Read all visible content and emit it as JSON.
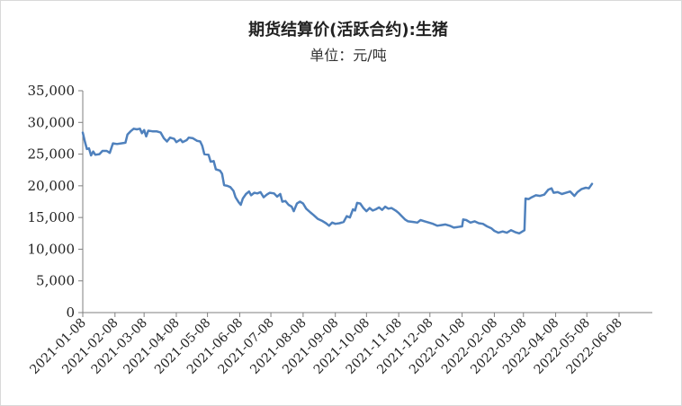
{
  "chart_data": {
    "type": "line",
    "title": "期货结算价(活跃合约):生猪",
    "subtitle": "单位：元/吨",
    "xlabel": "",
    "ylabel": "",
    "ylim": [
      0,
      35000
    ],
    "ytick_labels": [
      "0",
      "5,000",
      "10,000",
      "15,000",
      "20,000",
      "25,000",
      "30,000",
      "35,000"
    ],
    "yticks": [
      0,
      5000,
      10000,
      15000,
      20000,
      25000,
      30000,
      35000
    ],
    "xlim": [
      "2021-01-08",
      "2022-07-10"
    ],
    "xtick_labels": [
      "2021-01-08",
      "2021-02-08",
      "2021-03-08",
      "2021-04-08",
      "2021-05-08",
      "2021-06-08",
      "2021-07-08",
      "2021-08-08",
      "2021-09-08",
      "2021-10-08",
      "2021-11-08",
      "2021-12-08",
      "2022-01-08",
      "2022-02-08",
      "2022-03-08",
      "2022-04-08",
      "2022-05-08",
      "2022-06-08"
    ],
    "grid": false,
    "legend": "none",
    "series": [
      {
        "color": "#4f81bd",
        "points": [
          [
            "2021-01-08",
            28400
          ],
          [
            "2021-01-10",
            27000
          ],
          [
            "2021-01-12",
            25800
          ],
          [
            "2021-01-14",
            25900
          ],
          [
            "2021-01-16",
            24800
          ],
          [
            "2021-01-18",
            25400
          ],
          [
            "2021-01-20",
            24900
          ],
          [
            "2021-01-24",
            25000
          ],
          [
            "2021-01-27",
            25500
          ],
          [
            "2021-01-31",
            25500
          ],
          [
            "2021-02-03",
            25200
          ],
          [
            "2021-02-06",
            26700
          ],
          [
            "2021-02-10",
            26600
          ],
          [
            "2021-02-14",
            26700
          ],
          [
            "2021-02-18",
            26800
          ],
          [
            "2021-02-20",
            28100
          ],
          [
            "2021-02-23",
            28600
          ],
          [
            "2021-02-26",
            29000
          ],
          [
            "2021-03-01",
            28900
          ],
          [
            "2021-03-04",
            29000
          ],
          [
            "2021-03-06",
            28300
          ],
          [
            "2021-03-08",
            28800
          ],
          [
            "2021-03-10",
            27800
          ],
          [
            "2021-03-12",
            28700
          ],
          [
            "2021-03-16",
            28600
          ],
          [
            "2021-03-20",
            28600
          ],
          [
            "2021-03-24",
            28400
          ],
          [
            "2021-03-27",
            27500
          ],
          [
            "2021-03-30",
            27000
          ],
          [
            "2021-04-02",
            27600
          ],
          [
            "2021-04-06",
            27400
          ],
          [
            "2021-04-08",
            26900
          ],
          [
            "2021-04-12",
            27300
          ],
          [
            "2021-04-14",
            26900
          ],
          [
            "2021-04-18",
            27200
          ],
          [
            "2021-04-20",
            27600
          ],
          [
            "2021-04-24",
            27500
          ],
          [
            "2021-04-28",
            27100
          ],
          [
            "2021-05-01",
            27000
          ],
          [
            "2021-05-03",
            26300
          ],
          [
            "2021-05-05",
            25000
          ],
          [
            "2021-05-09",
            24900
          ],
          [
            "2021-05-11",
            23800
          ],
          [
            "2021-05-14",
            23900
          ],
          [
            "2021-05-16",
            22600
          ],
          [
            "2021-05-20",
            22400
          ],
          [
            "2021-05-22",
            21900
          ],
          [
            "2021-05-24",
            20100
          ],
          [
            "2021-05-27",
            20000
          ],
          [
            "2021-05-30",
            19800
          ],
          [
            "2021-06-02",
            19200
          ],
          [
            "2021-06-04",
            18200
          ],
          [
            "2021-06-07",
            17400
          ],
          [
            "2021-06-09",
            17000
          ],
          [
            "2021-06-11",
            18000
          ],
          [
            "2021-06-14",
            18700
          ],
          [
            "2021-06-17",
            19100
          ],
          [
            "2021-06-19",
            18500
          ],
          [
            "2021-06-22",
            18900
          ],
          [
            "2021-06-25",
            18800
          ],
          [
            "2021-06-28",
            19000
          ],
          [
            "2021-07-01",
            18200
          ],
          [
            "2021-07-04",
            18600
          ],
          [
            "2021-07-07",
            18900
          ],
          [
            "2021-07-11",
            18800
          ],
          [
            "2021-07-14",
            18300
          ],
          [
            "2021-07-17",
            18700
          ],
          [
            "2021-07-19",
            17500
          ],
          [
            "2021-07-22",
            17600
          ],
          [
            "2021-07-25",
            17000
          ],
          [
            "2021-07-28",
            16700
          ],
          [
            "2021-07-30",
            16000
          ],
          [
            "2021-08-02",
            17200
          ],
          [
            "2021-08-05",
            17500
          ],
          [
            "2021-08-08",
            17200
          ],
          [
            "2021-08-11",
            16400
          ],
          [
            "2021-08-15",
            15800
          ],
          [
            "2021-08-18",
            15400
          ],
          [
            "2021-08-22",
            14800
          ],
          [
            "2021-08-26",
            14500
          ],
          [
            "2021-08-30",
            14100
          ],
          [
            "2021-09-02",
            13700
          ],
          [
            "2021-09-05",
            14200
          ],
          [
            "2021-09-08",
            14000
          ],
          [
            "2021-09-12",
            14100
          ],
          [
            "2021-09-16",
            14300
          ],
          [
            "2021-09-19",
            15200
          ],
          [
            "2021-09-22",
            15000
          ],
          [
            "2021-09-25",
            16300
          ],
          [
            "2021-09-27",
            16100
          ],
          [
            "2021-09-29",
            17300
          ],
          [
            "2021-10-02",
            17200
          ],
          [
            "2021-10-05",
            16500
          ],
          [
            "2021-10-08",
            16000
          ],
          [
            "2021-10-11",
            16500
          ],
          [
            "2021-10-14",
            16100
          ],
          [
            "2021-10-17",
            16300
          ],
          [
            "2021-10-20",
            16600
          ],
          [
            "2021-10-23",
            16200
          ],
          [
            "2021-10-26",
            16700
          ],
          [
            "2021-10-29",
            16400
          ],
          [
            "2021-11-01",
            16500
          ],
          [
            "2021-11-05",
            16100
          ],
          [
            "2021-11-08",
            15700
          ],
          [
            "2021-11-11",
            15200
          ],
          [
            "2021-11-14",
            14700
          ],
          [
            "2021-11-17",
            14400
          ],
          [
            "2021-11-22",
            14300
          ],
          [
            "2021-11-26",
            14200
          ],
          [
            "2021-11-29",
            14600
          ],
          [
            "2021-12-03",
            14400
          ],
          [
            "2021-12-07",
            14200
          ],
          [
            "2021-12-11",
            14000
          ],
          [
            "2021-12-15",
            13700
          ],
          [
            "2021-12-19",
            13800
          ],
          [
            "2021-12-23",
            13900
          ],
          [
            "2021-12-27",
            13700
          ],
          [
            "2021-12-31",
            13400
          ],
          [
            "2022-01-04",
            13500
          ],
          [
            "2022-01-08",
            13600
          ],
          [
            "2022-01-09",
            14700
          ],
          [
            "2022-01-12",
            14600
          ],
          [
            "2022-01-16",
            14200
          ],
          [
            "2022-01-20",
            14400
          ],
          [
            "2022-01-24",
            14100
          ],
          [
            "2022-01-28",
            14000
          ],
          [
            "2022-02-01",
            13600
          ],
          [
            "2022-02-05",
            13300
          ],
          [
            "2022-02-08",
            12900
          ],
          [
            "2022-02-12",
            12600
          ],
          [
            "2022-02-16",
            12800
          ],
          [
            "2022-02-20",
            12600
          ],
          [
            "2022-02-24",
            13000
          ],
          [
            "2022-02-28",
            12700
          ],
          [
            "2022-03-04",
            12500
          ],
          [
            "2022-03-09",
            13000
          ],
          [
            "2022-03-10",
            18000
          ],
          [
            "2022-03-13",
            17900
          ],
          [
            "2022-03-16",
            18200
          ],
          [
            "2022-03-20",
            18500
          ],
          [
            "2022-03-24",
            18400
          ],
          [
            "2022-03-28",
            18600
          ],
          [
            "2022-04-01",
            19400
          ],
          [
            "2022-04-04",
            19600
          ],
          [
            "2022-04-06",
            18900
          ],
          [
            "2022-04-10",
            19000
          ],
          [
            "2022-04-14",
            18700
          ],
          [
            "2022-04-18",
            18900
          ],
          [
            "2022-04-22",
            19100
          ],
          [
            "2022-04-26",
            18400
          ],
          [
            "2022-04-29",
            19000
          ],
          [
            "2022-05-03",
            19500
          ],
          [
            "2022-05-07",
            19700
          ],
          [
            "2022-05-10",
            19600
          ],
          [
            "2022-05-13",
            20300
          ]
        ]
      }
    ]
  }
}
